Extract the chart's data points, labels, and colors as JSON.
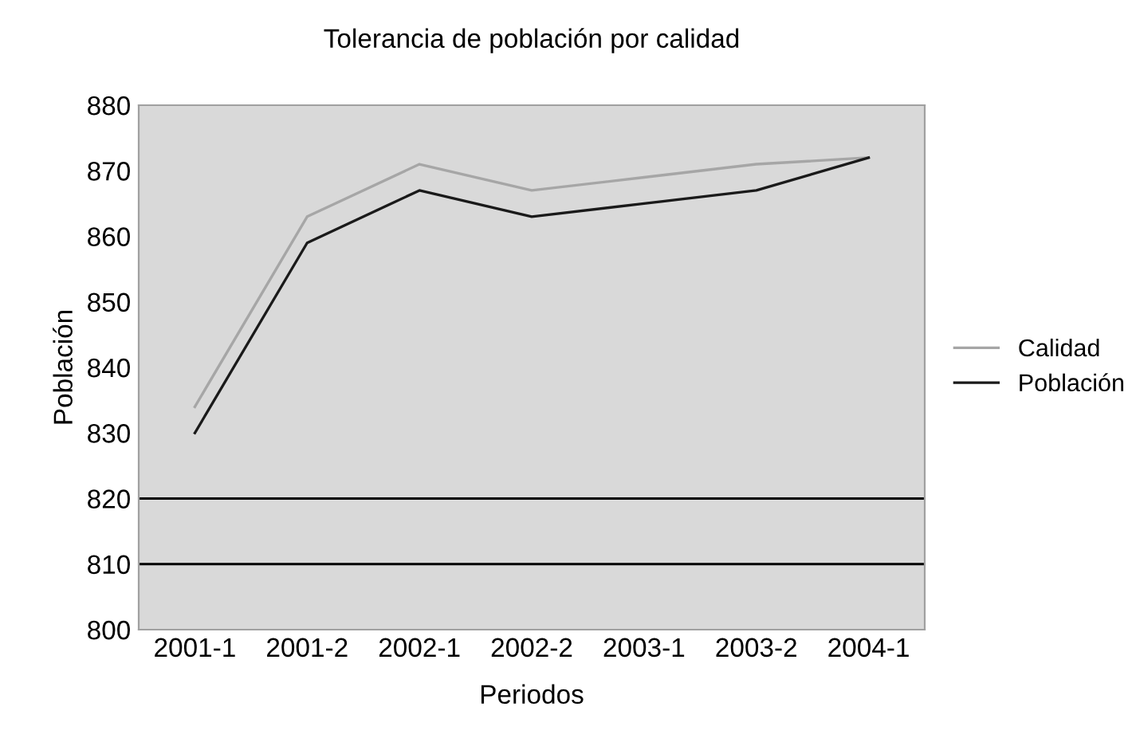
{
  "chart_data": {
    "type": "line",
    "title": "Tolerancia de población por calidad",
    "xlabel": "Periodos",
    "ylabel": "Población",
    "categories": [
      "2001-1",
      "2001-2",
      "2002-1",
      "2002-2",
      "2003-1",
      "2003-2",
      "2004-1"
    ],
    "series": [
      {
        "name": "Calidad",
        "color": "#a6a6a6",
        "values": [
          834,
          863,
          871,
          867,
          869,
          871,
          872
        ]
      },
      {
        "name": "Población",
        "color": "#1a1a1a",
        "values": [
          830,
          859,
          867,
          863,
          865,
          867,
          872
        ]
      }
    ],
    "ylim": [
      800,
      880
    ],
    "yticks": [
      800,
      810,
      820,
      830,
      840,
      850,
      860,
      870,
      880
    ],
    "ref_lines": [
      {
        "axis": "y",
        "value": 810,
        "color": "#000000"
      },
      {
        "axis": "y",
        "value": 820,
        "color": "#000000"
      }
    ],
    "grid": false,
    "legend": "right",
    "marker": "none",
    "line_style": "solid"
  }
}
